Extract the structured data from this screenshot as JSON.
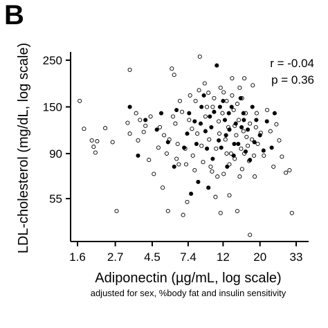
{
  "panel_label": "B",
  "chart_data": {
    "type": "scatter",
    "xlabel": "Adiponectin (µg/mL, log scale)",
    "xnote": "adjusted for sex, %body fat and insulin sensitivity",
    "ylabel": "LDL-cholesterol (mg/dL, log scale)",
    "x_scale": "log",
    "y_scale": "log",
    "xlim": [
      1.6,
      40
    ],
    "ylim": [
      38,
      290
    ],
    "x_ticks": [
      1.6,
      2.7,
      4.5,
      7.4,
      12,
      20,
      33
    ],
    "x_tick_labels": [
      "1.6",
      "2.7",
      "4.5",
      "7.4",
      "12",
      "20",
      "33"
    ],
    "y_ticks": [
      55,
      90,
      150,
      250
    ],
    "y_tick_labels": [
      "55",
      "90",
      "150",
      "250"
    ],
    "grid": false,
    "stats": {
      "r": "r = -0.04",
      "p": "p = 0.36"
    },
    "series": [
      {
        "marker": "open-circle",
        "color": "#000000",
        "points": [
          [
            1.65,
            160
          ],
          [
            1.75,
            118
          ],
          [
            1.95,
            104
          ],
          [
            2.0,
            97
          ],
          [
            2.05,
            91
          ],
          [
            2.1,
            103
          ],
          [
            2.35,
            119
          ],
          [
            2.6,
            102
          ],
          [
            2.75,
            48
          ],
          [
            3.3,
            225
          ],
          [
            3.2,
            126
          ],
          [
            3.3,
            112
          ],
          [
            3.6,
            140
          ],
          [
            3.8,
            130
          ],
          [
            3.7,
            104
          ],
          [
            4.0,
            114
          ],
          [
            4.3,
            84
          ],
          [
            4.6,
            72
          ],
          [
            4.9,
            96
          ],
          [
            5.2,
            62
          ],
          [
            5.6,
            48
          ],
          [
            5.9,
            228
          ],
          [
            6.1,
            213
          ],
          [
            6.2,
            125
          ],
          [
            6.5,
            80
          ],
          [
            6.9,
            46
          ],
          [
            7.3,
            53
          ],
          [
            7.8,
            118
          ],
          [
            8.2,
            160
          ],
          [
            8.7,
            260
          ],
          [
            9.3,
            194
          ],
          [
            9.8,
            175
          ],
          [
            10.3,
            74
          ],
          [
            10.8,
            56
          ],
          [
            11.3,
            128
          ],
          [
            11.6,
            47
          ],
          [
            12.1,
            176
          ],
          [
            12.6,
            90
          ],
          [
            13.1,
            57
          ],
          [
            13.6,
            205
          ],
          [
            14.1,
            122
          ],
          [
            14.6,
            48
          ],
          [
            15.1,
            185
          ],
          [
            15.6,
            76
          ],
          [
            16.1,
            205
          ],
          [
            16.6,
            108
          ],
          [
            17.2,
            83
          ],
          [
            17.4,
            37
          ],
          [
            18.1,
            190
          ],
          [
            18.6,
            70
          ],
          [
            19.1,
            140
          ],
          [
            20.2,
            113
          ],
          [
            21.1,
            88
          ],
          [
            22.1,
            145
          ],
          [
            23.1,
            115
          ],
          [
            24.1,
            78
          ],
          [
            25.1,
            124
          ],
          [
            26.1,
            104
          ],
          [
            27.1,
            87
          ],
          [
            28.6,
            73
          ],
          [
            30.1,
            75
          ],
          [
            31.1,
            47
          ],
          [
            4.1,
            122
          ],
          [
            4.4,
            135
          ],
          [
            5.0,
            120
          ],
          [
            5.3,
            110
          ],
          [
            5.7,
            105
          ],
          [
            6.0,
            135
          ],
          [
            6.4,
            100
          ],
          [
            6.8,
            142
          ],
          [
            7.1,
            95
          ],
          [
            7.5,
            130
          ],
          [
            7.9,
            88
          ],
          [
            8.4,
            112
          ],
          [
            8.9,
            98
          ],
          [
            9.4,
            135
          ],
          [
            9.9,
            105
          ],
          [
            10.4,
            150
          ],
          [
            10.9,
            95
          ],
          [
            11.4,
            112
          ],
          [
            11.9,
            140
          ],
          [
            12.4,
            105
          ],
          [
            12.9,
            120
          ],
          [
            13.4,
            90
          ],
          [
            13.9,
            145
          ],
          [
            14.4,
            110
          ],
          [
            14.9,
            130
          ],
          [
            15.4,
            95
          ],
          [
            15.9,
            115
          ],
          [
            16.4,
            140
          ],
          [
            16.9,
            98
          ],
          [
            17.4,
            125
          ],
          [
            17.9,
            105
          ],
          [
            18.4,
            88
          ],
          [
            18.9,
            120
          ],
          [
            19.4,
            100
          ],
          [
            6.6,
            160
          ],
          [
            7.6,
            170
          ],
          [
            8.6,
            180
          ],
          [
            9.6,
            150
          ],
          [
            10.6,
            165
          ],
          [
            11.6,
            185
          ],
          [
            12.6,
            160
          ],
          [
            13.6,
            170
          ],
          [
            14.6,
            155
          ],
          [
            15.6,
            165
          ],
          [
            5.5,
            90
          ],
          [
            6.3,
            85
          ],
          [
            7.2,
            80
          ],
          [
            8.1,
            75
          ],
          [
            9.1,
            82
          ],
          [
            10.1,
            78
          ],
          [
            11.1,
            70
          ],
          [
            12.1,
            72
          ],
          [
            13.1,
            80
          ],
          [
            14.1,
            85
          ],
          [
            15.1,
            70
          ],
          [
            16.1,
            90
          ]
        ]
      },
      {
        "marker": "filled-circle",
        "color": "#000000",
        "points": [
          [
            3.3,
            150
          ],
          [
            3.7,
            88
          ],
          [
            4.1,
            130
          ],
          [
            4.8,
            117
          ],
          [
            5.1,
            140
          ],
          [
            5.6,
            102
          ],
          [
            6.1,
            78
          ],
          [
            6.3,
            145
          ],
          [
            7.0,
            96
          ],
          [
            7.3,
            112
          ],
          [
            7.7,
            58
          ],
          [
            8.1,
            128
          ],
          [
            8.5,
            66
          ],
          [
            8.9,
            150
          ],
          [
            9.2,
            170
          ],
          [
            9.6,
            95
          ],
          [
            9.8,
            62
          ],
          [
            10.2,
            120
          ],
          [
            10.6,
            142
          ],
          [
            11.0,
            236
          ],
          [
            11.3,
            104
          ],
          [
            11.7,
            96
          ],
          [
            12.0,
            160
          ],
          [
            12.3,
            130
          ],
          [
            12.7,
            78
          ],
          [
            13.1,
            117
          ],
          [
            13.5,
            150
          ],
          [
            13.9,
            88
          ],
          [
            14.3,
            125
          ],
          [
            14.8,
            100
          ],
          [
            15.3,
            165
          ],
          [
            15.9,
            140
          ],
          [
            16.4,
            92
          ],
          [
            16.9,
            117
          ],
          [
            17.4,
            84
          ],
          [
            18.0,
            150
          ],
          [
            18.5,
            102
          ],
          [
            19.0,
            130
          ],
          [
            20.0,
            110
          ],
          [
            21.0,
            93
          ],
          [
            22.0,
            128
          ],
          [
            23.5,
            96
          ],
          [
            24.5,
            140
          ],
          [
            8.3,
            100
          ],
          [
            9.4,
            115
          ],
          [
            10.4,
            85
          ],
          [
            12.5,
            110
          ],
          [
            14.0,
            100
          ],
          [
            15.5,
            120
          ],
          [
            7.5,
            140
          ],
          [
            8.8,
            125
          ],
          [
            10.0,
            135
          ],
          [
            11.5,
            150
          ],
          [
            13.0,
            140
          ],
          [
            16.0,
            130
          ]
        ]
      }
    ]
  }
}
